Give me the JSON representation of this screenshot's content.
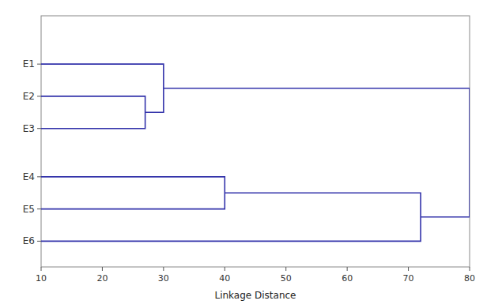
{
  "chart_data": {
    "type": "dendrogram",
    "xlabel": "Linkage Distance",
    "color": "#3333aa",
    "xlim": [
      10,
      80
    ],
    "xticks": [
      10,
      20,
      30,
      40,
      50,
      60,
      70,
      80
    ],
    "ylim": [
      -0.3,
      7.5
    ],
    "yticks": [
      {
        "value": 6,
        "label": "E1"
      },
      {
        "value": 5,
        "label": "E2"
      },
      {
        "value": 4,
        "label": "E3"
      },
      {
        "value": 2.5,
        "label": "E4"
      },
      {
        "value": 1.5,
        "label": "E5"
      },
      {
        "value": 0.5,
        "label": "E6"
      }
    ],
    "merges": [
      {
        "children": [
          1,
          2
        ],
        "distance": 27
      },
      {
        "children": [
          0,
          6
        ],
        "distance": 30
      },
      {
        "children": [
          3,
          4
        ],
        "distance": 40
      },
      {
        "children": [
          8,
          5
        ],
        "distance": 72
      },
      {
        "children": [
          7,
          9
        ],
        "distance": 80
      }
    ],
    "grid": false
  }
}
